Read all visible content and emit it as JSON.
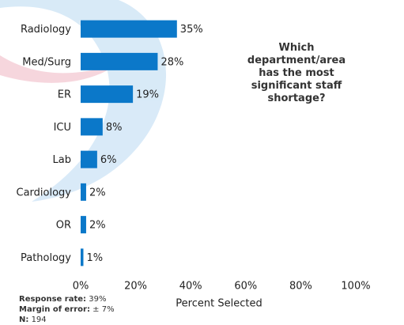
{
  "chart_data": {
    "type": "hbar",
    "title": "Which department/area has the most significant staff shortage?",
    "categories": [
      "Radiology",
      "Med/Surg",
      "ER",
      "ICU",
      "Lab",
      "Cardiology",
      "OR",
      "Pathology"
    ],
    "values": [
      35,
      28,
      19,
      8,
      6,
      2,
      2,
      1
    ],
    "value_labels": [
      "35%",
      "28%",
      "19%",
      "8%",
      "6%",
      "2%",
      "2%",
      "1%"
    ],
    "color": "#0b78c9",
    "xlim": [
      0,
      100
    ],
    "xticks": [
      {
        "value": 0,
        "label": "0%"
      },
      {
        "value": 20,
        "label": "20%"
      },
      {
        "value": 40,
        "label": "40%"
      },
      {
        "value": 60,
        "label": "60%"
      },
      {
        "value": 80,
        "label": "80%"
      },
      {
        "value": 100,
        "label": "100%"
      }
    ],
    "xlabel": "Percent Selected",
    "notes": [
      {
        "label": "Response rate:",
        "value": "39%"
      },
      {
        "label": "Margin of error:",
        "value": "± 7%"
      },
      {
        "label": "N:",
        "value": "194"
      }
    ]
  }
}
